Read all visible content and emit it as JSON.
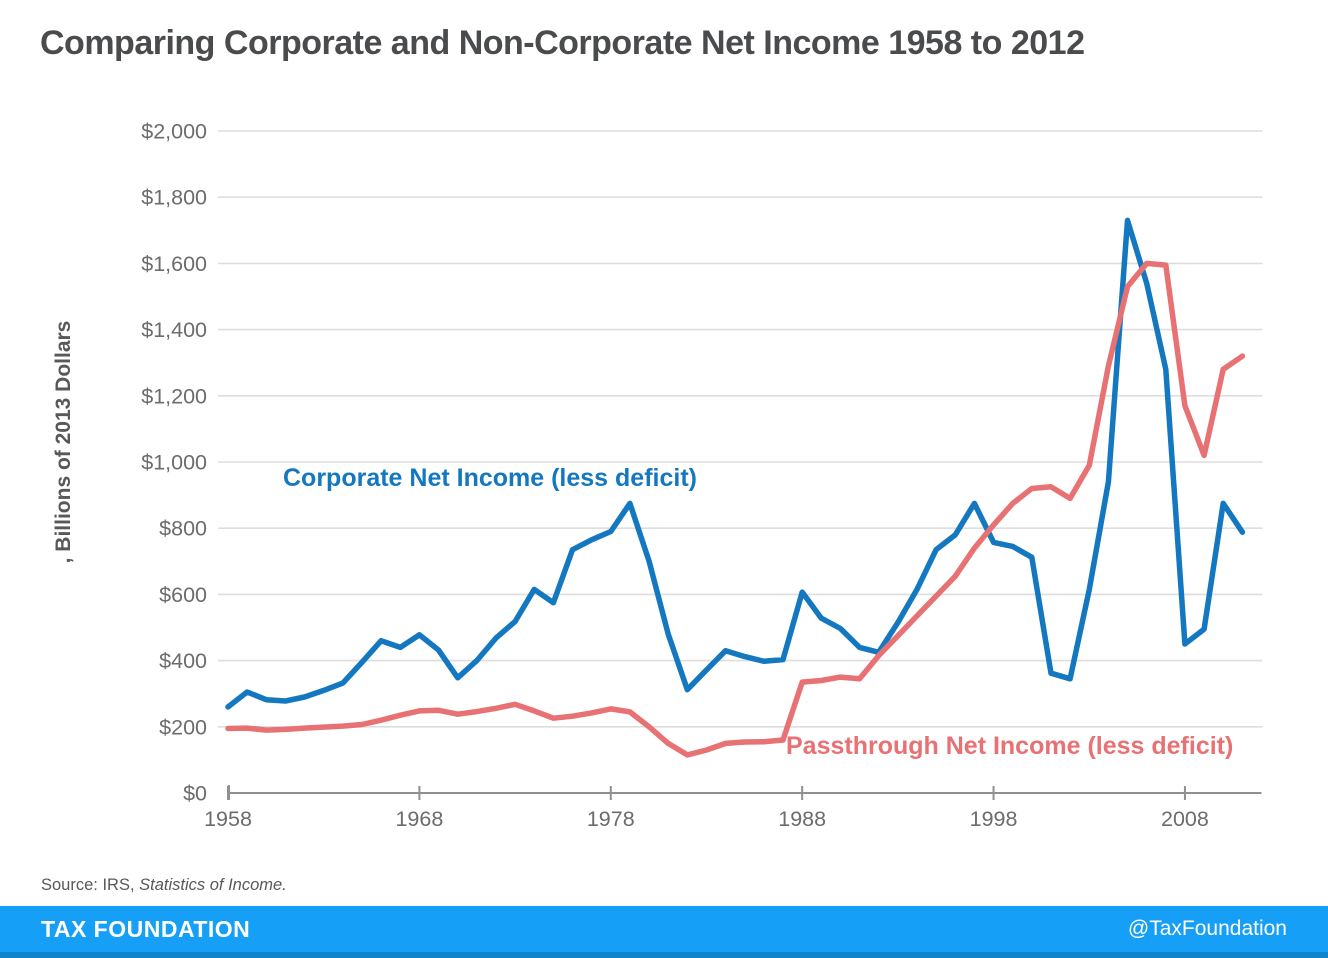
{
  "title": "Comparing Corporate and Non-Corporate Net Income 1958 to 2012",
  "chart_data": {
    "type": "line",
    "title": "Comparing Corporate and Non-Corporate Net Income 1958 to 2012",
    "xlabel": "",
    "ylabel": ", Billions of 2013 Dollars",
    "xlim": [
      1958,
      2012
    ],
    "ylim": [
      0,
      2000
    ],
    "grid": true,
    "legend_position": "inline-annotations",
    "xticks": [
      1958,
      1968,
      1978,
      1988,
      1998,
      2008
    ],
    "ytick_labels": [
      "$0",
      "$200",
      "$400",
      "$600",
      "$800",
      "$1,000",
      "$1,200",
      "$1,400",
      "$1,600",
      "$1,800",
      "$2,000"
    ],
    "x": [
      1958,
      1959,
      1960,
      1961,
      1962,
      1963,
      1964,
      1965,
      1966,
      1967,
      1968,
      1969,
      1970,
      1971,
      1972,
      1973,
      1974,
      1975,
      1976,
      1977,
      1978,
      1979,
      1980,
      1981,
      1982,
      1983,
      1984,
      1985,
      1986,
      1987,
      1988,
      1989,
      1990,
      1991,
      1992,
      1993,
      1994,
      1995,
      1996,
      1997,
      1998,
      1999,
      2000,
      2001,
      2002,
      2003,
      2004,
      2005,
      2006,
      2007,
      2008,
      2009,
      2010,
      2011
    ],
    "series": [
      {
        "name": "Corporate Net Income (less deficit)",
        "color": "#1478c0",
        "values": [
          260,
          305,
          282,
          278,
          290,
          310,
          332,
          395,
          460,
          440,
          478,
          432,
          348,
          400,
          468,
          518,
          615,
          575,
          735,
          765,
          790,
          875,
          700,
          480,
          312,
          372,
          430,
          412,
          398,
          403,
          607,
          528,
          497,
          440,
          425,
          515,
          615,
          735,
          780,
          875,
          757,
          745,
          712,
          362,
          345,
          615,
          940,
          1730,
          1540,
          1280,
          450,
          495,
          875,
          788
        ]
      },
      {
        "name": "Passthrough Net Income (less deficit)",
        "color": "#e87174",
        "values": [
          195,
          196,
          190,
          192,
          196,
          199,
          202,
          207,
          220,
          235,
          248,
          250,
          238,
          246,
          256,
          268,
          248,
          226,
          232,
          242,
          254,
          245,
          200,
          150,
          115,
          130,
          150,
          154,
          155,
          160,
          335,
          340,
          350,
          345,
          415,
          475,
          535,
          595,
          655,
          740,
          810,
          875,
          920,
          925,
          890,
          990,
          1290,
          1530,
          1600,
          1595,
          1170,
          1020,
          1280,
          1320
        ]
      }
    ],
    "axis_color": "#8f9092",
    "grid_color": "#dedede",
    "tick_label_color": "#6b6c6e"
  },
  "source": {
    "prefix": "Source: IRS, ",
    "italic": "Statistics of Income."
  },
  "footer": {
    "brand": "TAX FOUNDATION",
    "handle": "@TaxFoundation",
    "bar_color": "#169ff7",
    "strip_color": "#0f83cc"
  }
}
